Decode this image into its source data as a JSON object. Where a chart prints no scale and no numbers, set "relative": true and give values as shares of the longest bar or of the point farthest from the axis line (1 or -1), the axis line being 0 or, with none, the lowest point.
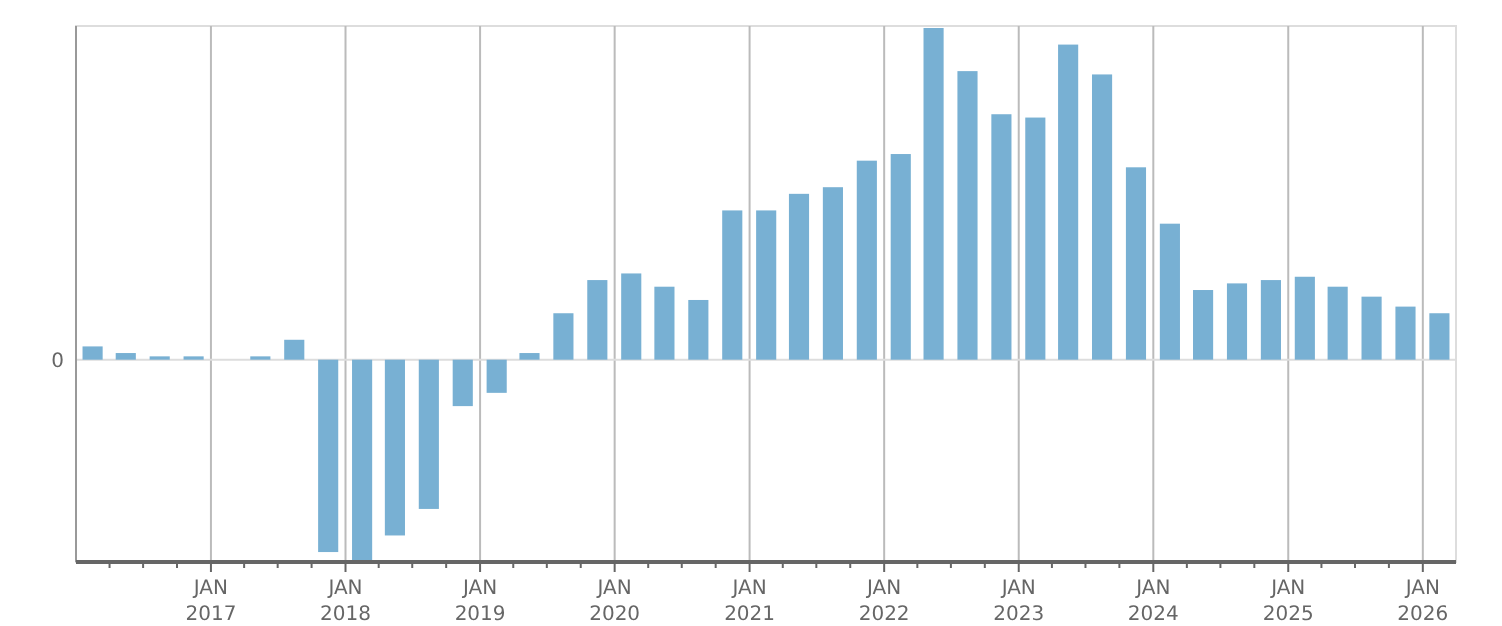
{
  "chart_data": {
    "type": "bar",
    "relative": true,
    "grid": "x",
    "x": [
      "2016-02-15",
      "2016-05-15",
      "2016-08-15",
      "2016-11-15",
      "2017-02-15",
      "2017-05-15",
      "2017-08-15",
      "2017-11-15",
      "2018-02-15",
      "2018-05-15",
      "2018-08-15",
      "2018-11-15",
      "2019-02-15",
      "2019-05-15",
      "2019-08-15",
      "2019-11-15",
      "2020-02-15",
      "2020-05-15",
      "2020-08-15",
      "2020-11-15",
      "2021-02-15",
      "2021-05-15",
      "2021-08-15",
      "2021-11-15",
      "2022-02-15",
      "2022-05-15",
      "2022-08-15",
      "2022-11-15",
      "2023-02-15",
      "2023-05-15",
      "2023-08-15",
      "2023-11-15",
      "2024-02-15",
      "2024-05-15",
      "2024-08-15",
      "2024-11-15",
      "2025-02-15",
      "2025-05-15",
      "2025-08-15",
      "2025-11-15",
      "2026-02-15"
    ],
    "xlim": [
      "2016-01-01",
      "2026-04-01"
    ],
    "xticks": [
      {
        "value": "2016-04-01",
        "label": null
      },
      {
        "value": "2016-07-01",
        "label": null
      },
      {
        "value": "2016-10-01",
        "label": null
      },
      {
        "value": "2017-01-01",
        "label": "JAN 2017"
      },
      {
        "value": "2017-04-01",
        "label": null
      },
      {
        "value": "2017-07-01",
        "label": null
      },
      {
        "value": "2017-10-01",
        "label": null
      },
      {
        "value": "2018-01-01",
        "label": "JAN 2018"
      },
      {
        "value": "2018-04-01",
        "label": null
      },
      {
        "value": "2018-07-01",
        "label": null
      },
      {
        "value": "2018-10-01",
        "label": null
      },
      {
        "value": "2019-01-01",
        "label": "JAN 2019"
      },
      {
        "value": "2019-04-01",
        "label": null
      },
      {
        "value": "2019-07-01",
        "label": null
      },
      {
        "value": "2019-10-01",
        "label": null
      },
      {
        "value": "2020-01-01",
        "label": "JAN 2020"
      },
      {
        "value": "2020-04-01",
        "label": null
      },
      {
        "value": "2020-07-01",
        "label": null
      },
      {
        "value": "2020-10-01",
        "label": null
      },
      {
        "value": "2021-01-01",
        "label": "JAN 2021"
      },
      {
        "value": "2021-04-01",
        "label": null
      },
      {
        "value": "2021-07-01",
        "label": null
      },
      {
        "value": "2021-10-01",
        "label": null
      },
      {
        "value": "2022-01-01",
        "label": "JAN 2022"
      },
      {
        "value": "2022-04-01",
        "label": null
      },
      {
        "value": "2022-07-01",
        "label": null
      },
      {
        "value": "2022-10-01",
        "label": null
      },
      {
        "value": "2023-01-01",
        "label": "JAN 2023"
      },
      {
        "value": "2023-04-01",
        "label": null
      },
      {
        "value": "2023-07-01",
        "label": null
      },
      {
        "value": "2023-10-01",
        "label": null
      },
      {
        "value": "2024-01-01",
        "label": "JAN 2024"
      },
      {
        "value": "2024-04-01",
        "label": null
      },
      {
        "value": "2024-07-01",
        "label": null
      },
      {
        "value": "2024-10-01",
        "label": null
      },
      {
        "value": "2025-01-01",
        "label": "JAN 2025"
      },
      {
        "value": "2025-04-01",
        "label": null
      },
      {
        "value": "2025-07-01",
        "label": null
      },
      {
        "value": "2025-10-01",
        "label": null
      },
      {
        "value": "2026-01-01",
        "label": "JAN 2026"
      }
    ],
    "series": [
      {
        "color": "#78b0d3",
        "values": [
          0.04,
          0.02,
          0.01,
          0.01,
          0.0,
          0.01,
          0.06,
          -0.58,
          -0.61,
          -0.53,
          -0.45,
          -0.14,
          -0.1,
          0.02,
          0.14,
          0.24,
          0.26,
          0.22,
          0.18,
          0.45,
          0.45,
          0.5,
          0.52,
          0.6,
          0.62,
          1,
          0.87,
          0.74,
          0.73,
          0.95,
          0.86,
          0.58,
          0.41,
          0.21,
          0.23,
          0.24,
          0.25,
          0.22,
          0.19,
          0.16,
          0.14
        ]
      }
    ],
    "ref_lines": [
      {
        "axis": "y",
        "value": 0,
        "label": "0",
        "color": "#dddddd"
      }
    ]
  }
}
